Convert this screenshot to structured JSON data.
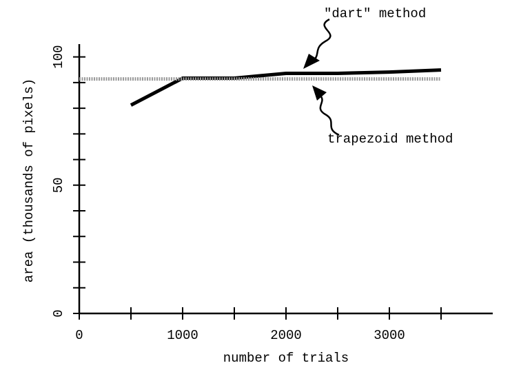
{
  "chart_data": {
    "type": "line",
    "xlabel": "number of trials",
    "ylabel": "area (thousands of pixels)",
    "series": [
      {
        "name": "\"dart\" method",
        "color": "#000000",
        "x": [
          500,
          1000,
          1500,
          2000,
          2500,
          3000,
          3500
        ],
        "values": [
          81.2,
          91.7,
          91.7,
          93.6,
          93.6,
          94.1,
          94.9
        ]
      },
      {
        "name": "trapezoid method",
        "color": "#999999",
        "x": [
          0,
          3500
        ],
        "values": [
          91.4,
          91.4
        ]
      }
    ],
    "xlim": [
      0,
      4000
    ],
    "xticks": [
      0,
      1000,
      2000,
      3000
    ],
    "xminorticks": [
      500,
      1500,
      2500,
      3500
    ],
    "ylim": [
      0,
      105
    ],
    "yticks": [
      0,
      50,
      100
    ],
    "yminorticks": [
      10,
      20,
      30,
      40,
      60,
      70,
      80,
      90
    ]
  }
}
